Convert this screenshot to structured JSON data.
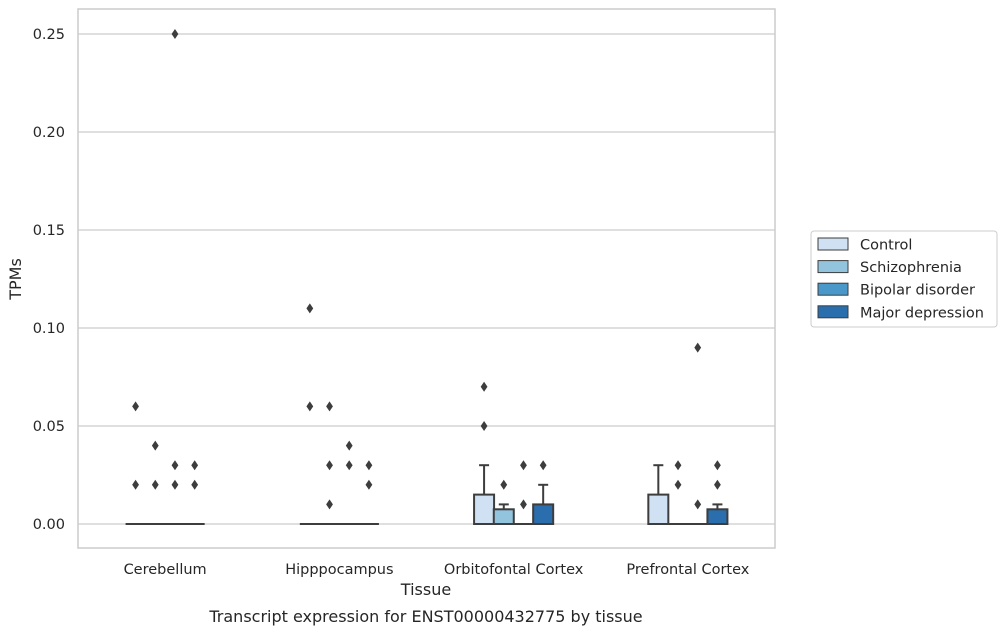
{
  "chart_data": {
    "type": "box",
    "title": "",
    "caption": "Transcript expression for ENST00000432775 by tissue",
    "xlabel": "Tissue",
    "ylabel": "TPMs",
    "ylim": [
      -0.012,
      0.263
    ],
    "yticks": [
      "0.00",
      "0.05",
      "0.10",
      "0.15",
      "0.20",
      "0.25"
    ],
    "ytick_values": [
      0.0,
      0.05,
      0.1,
      0.15,
      0.2,
      0.25
    ],
    "grid": true,
    "legend_position": "right",
    "categories": [
      "Cerebellum",
      "Hipppocampus",
      "Orbitofontal Cortex",
      "Prefrontal Cortex"
    ],
    "series": [
      {
        "name": "Control",
        "color": "#cfe1f2",
        "boxes": [
          {
            "q1": 0,
            "median": 0,
            "q3": 0,
            "whislo": 0,
            "whishi": 0,
            "fliers": [
              0.02,
              0.06
            ]
          },
          {
            "q1": 0,
            "median": 0,
            "q3": 0,
            "whislo": 0,
            "whishi": 0,
            "fliers": [
              0.11,
              0.06
            ]
          },
          {
            "q1": 0,
            "median": 0,
            "q3": 0.015,
            "whislo": 0,
            "whishi": 0.03,
            "fliers": [
              0.05,
              0.07
            ]
          },
          {
            "q1": 0,
            "median": 0,
            "q3": 0.015,
            "whislo": 0,
            "whishi": 0.03,
            "fliers": []
          }
        ]
      },
      {
        "name": "Schizophrenia",
        "color": "#93c4de",
        "boxes": [
          {
            "q1": 0,
            "median": 0,
            "q3": 0,
            "whislo": 0,
            "whishi": 0,
            "fliers": [
              0.04,
              0.02
            ]
          },
          {
            "q1": 0,
            "median": 0,
            "q3": 0,
            "whislo": 0,
            "whishi": 0,
            "fliers": [
              0.06,
              0.03,
              0.01
            ]
          },
          {
            "q1": 0,
            "median": 0,
            "q3": 0.0075,
            "whislo": 0,
            "whishi": 0.01,
            "fliers": [
              0.02
            ]
          },
          {
            "q1": 0,
            "median": 0,
            "q3": 0,
            "whislo": 0,
            "whishi": 0,
            "fliers": [
              0.03,
              0.02
            ]
          }
        ]
      },
      {
        "name": "Bipolar disorder",
        "color": "#4a98c9",
        "boxes": [
          {
            "q1": 0,
            "median": 0,
            "q3": 0,
            "whislo": 0,
            "whishi": 0,
            "fliers": [
              0.25,
              0.03,
              0.02
            ]
          },
          {
            "q1": 0,
            "median": 0,
            "q3": 0,
            "whislo": 0,
            "whishi": 0,
            "fliers": [
              0.04,
              0.03
            ]
          },
          {
            "q1": 0,
            "median": 0,
            "q3": 0,
            "whislo": 0,
            "whishi": 0,
            "fliers": [
              0.03,
              0.01
            ]
          },
          {
            "q1": 0,
            "median": 0,
            "q3": 0,
            "whislo": 0,
            "whishi": 0,
            "fliers": [
              0.09,
              0.01
            ]
          }
        ]
      },
      {
        "name": "Major depression",
        "color": "#2a6ead",
        "boxes": [
          {
            "q1": 0,
            "median": 0,
            "q3": 0,
            "whislo": 0,
            "whishi": 0,
            "fliers": [
              0.03,
              0.02
            ]
          },
          {
            "q1": 0,
            "median": 0,
            "q3": 0,
            "whislo": 0,
            "whishi": 0,
            "fliers": [
              0.03,
              0.02
            ]
          },
          {
            "q1": 0,
            "median": 0,
            "q3": 0.01,
            "whislo": 0,
            "whishi": 0.02,
            "fliers": [
              0.03
            ]
          },
          {
            "q1": 0,
            "median": 0,
            "q3": 0.0075,
            "whislo": 0,
            "whishi": 0.01,
            "fliers": [
              0.03,
              0.02
            ]
          }
        ]
      }
    ]
  }
}
